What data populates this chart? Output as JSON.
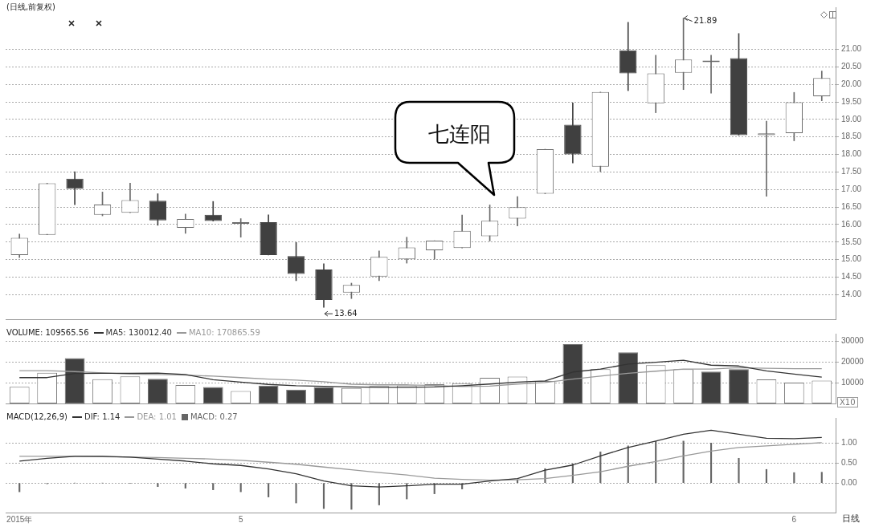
{
  "chart_data": [
    {
      "type": "candlestick",
      "title": "(日线,前复权)",
      "categories": [
        null,
        null,
        null,
        null,
        null,
        null,
        null,
        null,
        null,
        null,
        null,
        null,
        null,
        null,
        null,
        null,
        null,
        null,
        null,
        null,
        null,
        null,
        null,
        null,
        null,
        null,
        null,
        null,
        null,
        null
      ],
      "ohlc": [
        [
          15.13,
          15.73,
          15.06,
          15.62
        ],
        [
          15.71,
          17.18,
          15.71,
          17.18
        ],
        [
          17.31,
          17.51,
          16.57,
          17.02
        ],
        [
          16.28,
          16.93,
          16.25,
          16.57
        ],
        [
          16.34,
          17.18,
          16.34,
          16.7
        ],
        [
          16.68,
          16.88,
          15.98,
          16.12
        ],
        [
          15.91,
          16.3,
          15.75,
          16.16
        ],
        [
          16.28,
          16.66,
          16.1,
          16.1
        ],
        [
          16.02,
          16.17,
          15.64,
          16.05
        ],
        [
          16.07,
          16.28,
          15.13,
          15.13
        ],
        [
          15.1,
          15.49,
          14.4,
          14.59
        ],
        [
          14.72,
          14.88,
          13.64,
          13.85
        ],
        [
          14.06,
          14.33,
          13.89,
          14.28
        ],
        [
          14.52,
          15.25,
          14.4,
          15.08
        ],
        [
          15.01,
          15.64,
          14.9,
          15.35
        ],
        [
          15.27,
          15.54,
          15.01,
          15.54
        ],
        [
          15.33,
          16.27,
          15.33,
          15.82
        ],
        [
          15.67,
          16.56,
          15.53,
          16.11
        ],
        [
          16.17,
          16.8,
          15.96,
          16.5
        ],
        [
          16.88,
          18.15,
          16.88,
          18.15
        ],
        [
          18.85,
          19.47,
          17.76,
          18.0
        ],
        [
          17.65,
          19.78,
          17.51,
          19.78
        ],
        [
          20.97,
          21.77,
          19.82,
          20.31
        ],
        [
          19.46,
          20.83,
          19.19,
          20.31
        ],
        [
          20.33,
          21.89,
          19.85,
          20.71
        ],
        [
          20.63,
          20.83,
          19.75,
          20.67
        ],
        [
          20.75,
          21.45,
          18.55,
          18.55
        ],
        [
          18.55,
          18.95,
          16.81,
          18.6
        ],
        [
          18.61,
          19.77,
          18.39,
          19.49
        ],
        [
          19.66,
          20.38,
          19.53,
          20.18
        ]
      ],
      "ylim": [
        13.3,
        22.2
      ],
      "yticks": [
        {
          "value": 14,
          "label": "14.00"
        },
        {
          "value": 14.5,
          "label": "14.50"
        },
        {
          "value": 15,
          "label": "15.00"
        },
        {
          "value": 15.5,
          "label": "15.50"
        },
        {
          "value": 16,
          "label": "16.00"
        },
        {
          "value": 16.5,
          "label": "16.50"
        },
        {
          "value": 17,
          "label": "17.00"
        },
        {
          "value": 17.5,
          "label": "17.50"
        },
        {
          "value": 18,
          "label": "18.00"
        },
        {
          "value": 18.5,
          "label": "18.50"
        },
        {
          "value": 19,
          "label": "19.00"
        },
        {
          "value": 19.5,
          "label": "19.50"
        },
        {
          "value": 20,
          "label": "20.00"
        },
        {
          "value": 20.5,
          "label": "20.50"
        },
        {
          "value": 21,
          "label": "21.00"
        }
      ],
      "grid": "y",
      "tick_labels": "y",
      "annotations": [
        "七连阳",
        "21.89",
        "13.64"
      ]
    },
    {
      "type": "bar",
      "categories": [
        null,
        null,
        null,
        null,
        null,
        null,
        null,
        null,
        null,
        null,
        null,
        null,
        null,
        null,
        null,
        null,
        null,
        null,
        null,
        null,
        null,
        null,
        null,
        null,
        null,
        null,
        null,
        null,
        null,
        null
      ],
      "series": [
        {
          "type": "bar",
          "name": "VOLUME: 109565.56",
          "colors": [
            "#ffffff",
            "#ffffff",
            "#404040",
            "#ffffff",
            "#ffffff",
            "#404040",
            "#ffffff",
            "#404040",
            "#ffffff",
            "#404040",
            "#404040",
            "#404040",
            "#ffffff",
            "#ffffff",
            "#ffffff",
            "#ffffff",
            "#ffffff",
            "#ffffff",
            "#ffffff",
            "#ffffff",
            "#404040",
            "#ffffff",
            "#404040",
            "#ffffff",
            "#ffffff",
            "#404040",
            "#404040",
            "#ffffff",
            "#ffffff",
            "#ffffff"
          ],
          "values": [
            8000,
            14800,
            21900,
            11700,
            13100,
            11900,
            8900,
            7900,
            6000,
            8600,
            6700,
            7900,
            7500,
            8400,
            8700,
            9300,
            9800,
            12400,
            13000,
            10800,
            28700,
            16600,
            24700,
            18500,
            16600,
            15400,
            16600,
            11600,
            10100,
            11000
          ]
        },
        {
          "type": "line",
          "name": "MA5: 130012.40",
          "color": "#333333",
          "values": [
            12500,
            12500,
            14500,
            14600,
            14600,
            14700,
            14000,
            11500,
            10300,
            9200,
            8600,
            8300,
            8000,
            7800,
            7800,
            8000,
            8600,
            9400,
            10300,
            10900,
            15200,
            16600,
            19000,
            19900,
            20900,
            18500,
            18100,
            15700,
            14200,
            12700
          ]
        },
        {
          "type": "line",
          "name": "MA10: 170865.59",
          "color": "#999999",
          "values": [
            15800,
            15800,
            15400,
            14800,
            14200,
            14000,
            13700,
            13200,
            12500,
            11800,
            11300,
            10500,
            9300,
            9000,
            9000,
            8700,
            8200,
            8400,
            9400,
            10100,
            11800,
            13200,
            14600,
            15600,
            16600,
            16600,
            17300,
            17000,
            16800,
            16800
          ]
        }
      ],
      "ylim": [
        0,
        33700
      ],
      "yticks": [
        10000,
        20000,
        30000
      ],
      "grid": "y",
      "tick_labels": "y",
      "legend": "top left",
      "annotations": [
        "X10"
      ]
    },
    {
      "type": "bar",
      "title": "MACD(12,26,9)",
      "categories": [
        "2015年",
        null,
        null,
        null,
        null,
        null,
        null,
        null,
        "5",
        null,
        null,
        null,
        null,
        null,
        null,
        null,
        null,
        null,
        null,
        null,
        null,
        null,
        null,
        null,
        null,
        null,
        null,
        null,
        "6",
        null
      ],
      "series": [
        {
          "type": "line",
          "name": "DIF: 1.14",
          "color": "#333333",
          "values": [
            0.55,
            0.62,
            0.67,
            0.67,
            0.65,
            0.6,
            0.55,
            0.48,
            0.44,
            0.35,
            0.23,
            0.05,
            -0.07,
            -0.1,
            -0.07,
            -0.03,
            -0.03,
            0.05,
            0.11,
            0.32,
            0.45,
            0.68,
            0.89,
            1.05,
            1.22,
            1.32,
            1.22,
            1.12,
            1.11,
            1.14
          ]
        },
        {
          "type": "line",
          "name": "DEA: 1.01",
          "color": "#999999",
          "values": [
            0.67,
            0.67,
            0.67,
            0.66,
            0.65,
            0.64,
            0.62,
            0.6,
            0.57,
            0.52,
            0.47,
            0.4,
            0.33,
            0.26,
            0.2,
            0.12,
            0.09,
            0.07,
            0.08,
            0.11,
            0.19,
            0.28,
            0.42,
            0.54,
            0.68,
            0.8,
            0.89,
            0.93,
            0.97,
            1.01
          ]
        },
        {
          "type": "bar",
          "name": "MACD: 0.27",
          "color": "#666666",
          "values": [
            -0.22,
            -0.02,
            0,
            0,
            -0.01,
            -0.09,
            -0.13,
            -0.17,
            -0.22,
            -0.35,
            -0.5,
            -0.64,
            -0.66,
            -0.55,
            -0.4,
            -0.27,
            -0.15,
            0.01,
            0.08,
            0.36,
            0.48,
            0.78,
            0.93,
            1.04,
            1.05,
            1.0,
            0.62,
            0.34,
            0.26,
            0.27
          ]
        }
      ],
      "ylim": [
        -0.74,
        1.63
      ],
      "yticks": [
        {
          "value": 0,
          "label": "0.00"
        },
        {
          "value": 0.5,
          "label": "0.50"
        },
        {
          "value": 1,
          "label": "1.00"
        }
      ],
      "grid": "y",
      "legend": "top left",
      "annotations": [
        "日线"
      ]
    }
  ]
}
